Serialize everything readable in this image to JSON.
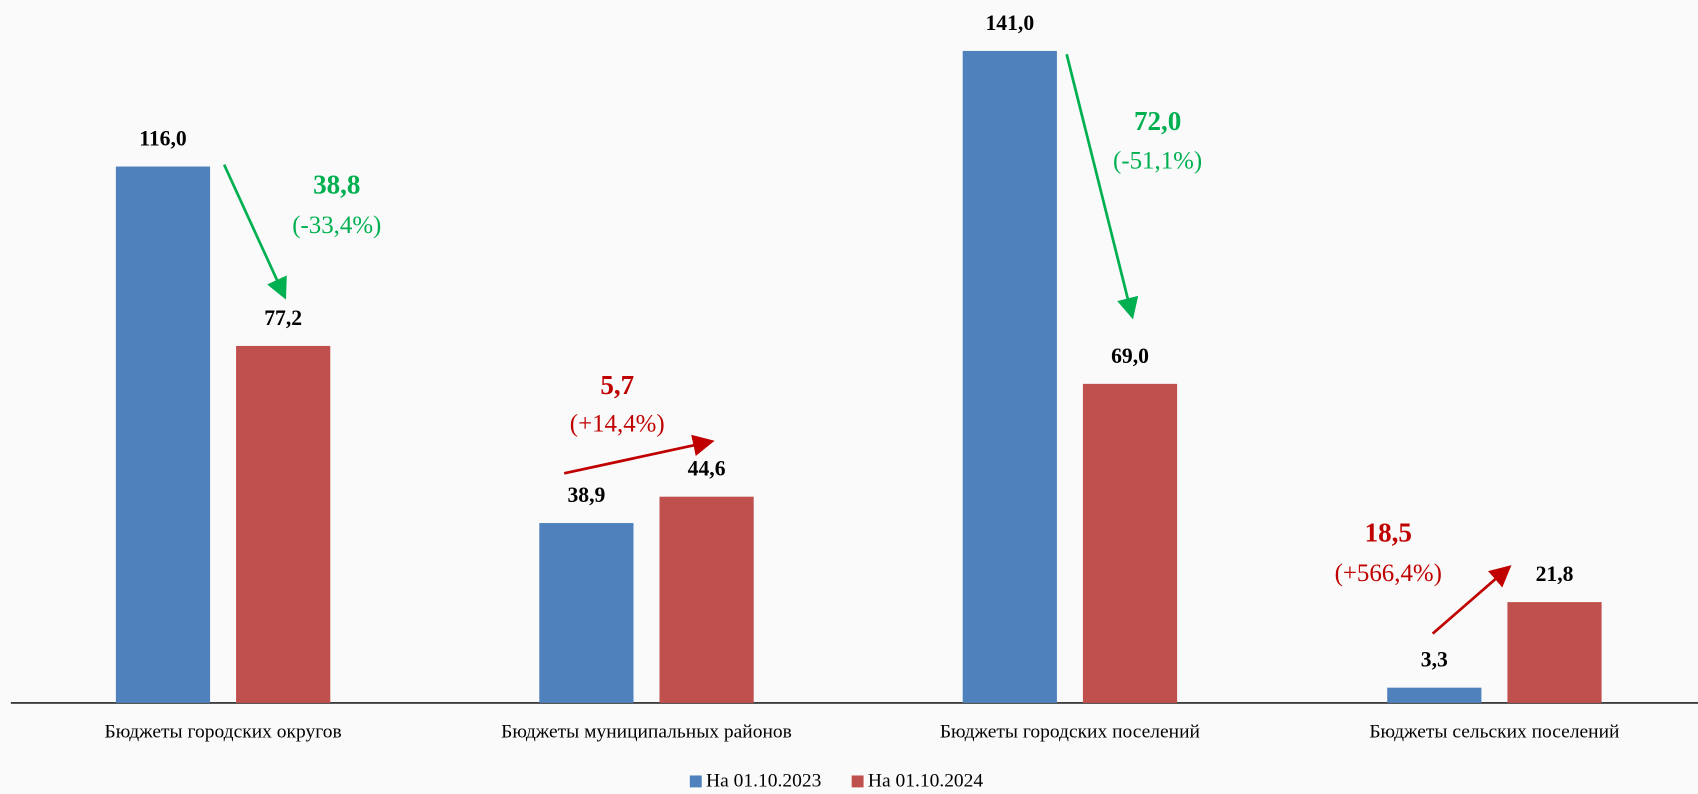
{
  "chart_data": {
    "type": "bar",
    "categories": [
      "Бюджеты городских округов",
      "Бюджеты муниципальных районов",
      "Бюджеты городских поселений",
      "Бюджеты сельских поселений"
    ],
    "series": [
      {
        "name": "На 01.10.2023",
        "color": "#4f81bd",
        "values": [
          116.0,
          38.9,
          141.0,
          3.3
        ],
        "value_labels": [
          "116,0",
          "38,9",
          "141,0",
          "3,3"
        ]
      },
      {
        "name": "На 01.10.2024",
        "color": "#c0504d",
        "values": [
          77.2,
          44.6,
          69.0,
          21.8
        ],
        "value_labels": [
          "77,2",
          "44,6",
          "69,0",
          "21,8"
        ]
      }
    ],
    "annotations": [
      {
        "text": "38,8",
        "subtext": "(-33,4%)",
        "color": "#00b050"
      },
      {
        "text": "5,7",
        "subtext": "(+14,4%)",
        "color": "#c00000"
      },
      {
        "text": "72,0",
        "subtext": "(-51,1%)",
        "color": "#00b050"
      },
      {
        "text": "18,5",
        "subtext": "(+566,4%)",
        "color": "#c00000"
      }
    ],
    "ylim": [
      0,
      150
    ]
  }
}
